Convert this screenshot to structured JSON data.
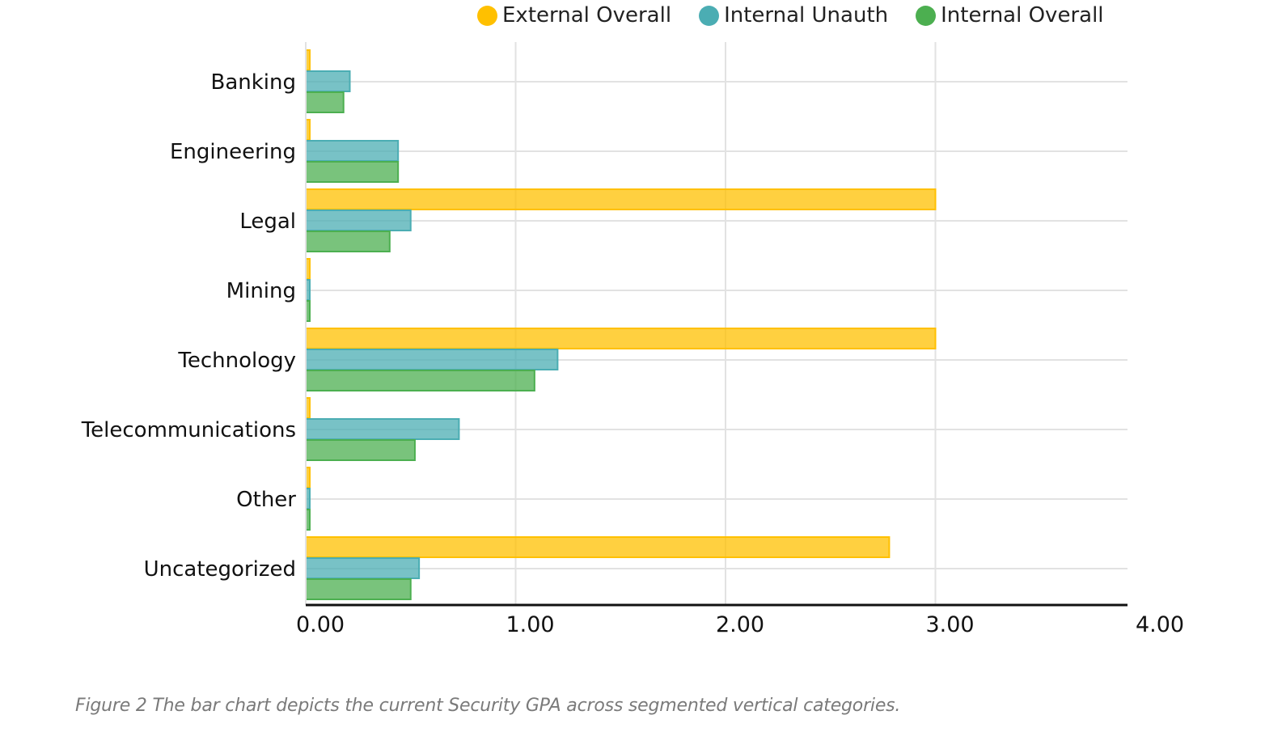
{
  "chart_data": {
    "type": "bar",
    "orientation": "horizontal",
    "categories": [
      "Banking",
      "Engineering",
      "Legal",
      "Mining",
      "Technology",
      "Telecommunications",
      "Other",
      "Uncategorized"
    ],
    "series": [
      {
        "name": "External Overall",
        "color": "#ffc000",
        "values": [
          0.0,
          0.0,
          3.0,
          0.0,
          3.0,
          0.0,
          0.0,
          2.78
        ]
      },
      {
        "name": "Internal Unauth",
        "color": "#4badb3",
        "values": [
          0.21,
          0.44,
          0.5,
          0.0,
          1.2,
          0.73,
          0.0,
          0.54
        ]
      },
      {
        "name": "Internal Overall",
        "color": "#4caf50",
        "values": [
          0.18,
          0.44,
          0.4,
          0.0,
          1.09,
          0.52,
          0.0,
          0.5
        ]
      }
    ],
    "x_ticks": [
      "0.00",
      "1.00",
      "2.00",
      "3.00",
      "4.00"
    ],
    "xlim": [
      0,
      4
    ],
    "grid": true,
    "legend_position": "top"
  },
  "caption": "Figure 2 The bar chart depicts the current Security GPA across segmented vertical categories."
}
